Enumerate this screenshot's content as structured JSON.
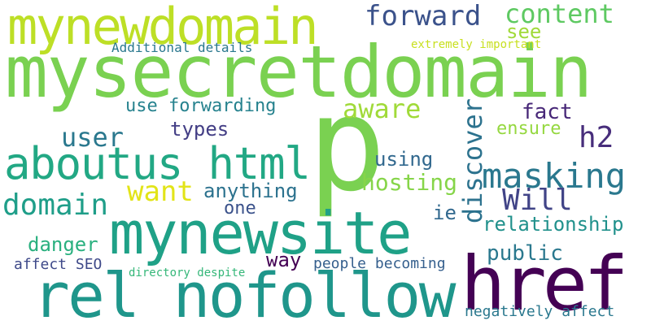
{
  "cloud": {
    "words": [
      {
        "text": "mysecretdomain",
        "color": "#7ad151"
      },
      {
        "text": "p",
        "color": "#7ad151"
      },
      {
        "text": "mynewdomain",
        "color": "#bddf26"
      },
      {
        "text": "forward",
        "color": "#3b528b"
      },
      {
        "text": "content",
        "color": "#5ec962"
      },
      {
        "text": "see",
        "color": "#a0da39"
      },
      {
        "text": "Additional details",
        "color": "#2a788e"
      },
      {
        "text": "extremely important",
        "color": "#c8e020"
      },
      {
        "text": "aware",
        "color": "#a0da39"
      },
      {
        "text": "use forwarding",
        "color": "#26828e"
      },
      {
        "text": "fact",
        "color": "#482878"
      },
      {
        "text": "discover",
        "color": "#2c728e"
      },
      {
        "text": "user",
        "color": "#2a788e"
      },
      {
        "text": "types",
        "color": "#433e85"
      },
      {
        "text": "ensure",
        "color": "#95d840"
      },
      {
        "text": "h2",
        "color": "#472d7b"
      },
      {
        "text": "aboutus html",
        "color": "#22a884"
      },
      {
        "text": "using",
        "color": "#31688e"
      },
      {
        "text": "masking",
        "color": "#2a788e"
      },
      {
        "text": "want",
        "color": "#e2e418"
      },
      {
        "text": "anything",
        "color": "#2c728e"
      },
      {
        "text": "hosting",
        "color": "#86d549"
      },
      {
        "text": "Will",
        "color": "#414487"
      },
      {
        "text": "domain",
        "color": "#1f9e89"
      },
      {
        "text": "one",
        "color": "#3b528b"
      },
      {
        "text": "ie",
        "color": "#31688e"
      },
      {
        "text": "relationship",
        "color": "#21918c"
      },
      {
        "text": "mynewsite",
        "color": "#1fa187"
      },
      {
        "text": "danger",
        "color": "#2ab07f"
      },
      {
        "text": "public",
        "color": "#2a788e"
      },
      {
        "text": "way",
        "color": "#440154"
      },
      {
        "text": "affect SEO",
        "color": "#3e4989"
      },
      {
        "text": "people becoming",
        "color": "#355f8d"
      },
      {
        "text": "directory despite",
        "color": "#35b779"
      },
      {
        "text": "href",
        "color": "#440154"
      },
      {
        "text": "rel nofollow",
        "color": "#1f968b"
      },
      {
        "text": "negatively affect",
        "color": "#2a788e"
      }
    ]
  }
}
